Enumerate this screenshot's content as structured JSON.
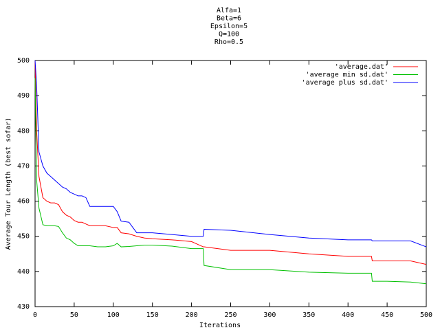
{
  "chart_data": {
    "type": "line",
    "title": [
      "Alfa=1",
      "Beta=6",
      "Epsilon=5",
      "Q=100",
      "Rho=0.5"
    ],
    "x_label": "Iterations",
    "y_label": "Average Tour Length (best sofar)",
    "x": [
      0,
      2,
      5,
      10,
      15,
      20,
      25,
      30,
      35,
      40,
      45,
      50,
      55,
      60,
      65,
      70,
      80,
      90,
      100,
      105,
      110,
      120,
      130,
      140,
      150,
      175,
      200,
      215,
      216,
      250,
      300,
      350,
      400,
      430,
      431,
      450,
      480,
      500
    ],
    "series": [
      {
        "name": "'average.dat'",
        "color": "#ff0000",
        "values": [
          500,
          480,
          467,
          461,
          460,
          459.5,
          459.5,
          459,
          457,
          456,
          455.5,
          454.5,
          454,
          454,
          453.5,
          453,
          453,
          453,
          452.5,
          452.5,
          451,
          450.7,
          450,
          449.5,
          449.3,
          449,
          448.5,
          447,
          447,
          446,
          446,
          445,
          444.3,
          444.3,
          443,
          443,
          443,
          442
        ]
      },
      {
        "name": "'average min sd.dat'",
        "color": "#00c000",
        "values": [
          495,
          466,
          458,
          453.3,
          453,
          453,
          453,
          452.8,
          451,
          449.5,
          449,
          448,
          447.3,
          447.3,
          447.3,
          447.3,
          447,
          447,
          447.3,
          448,
          447,
          447.1,
          447.3,
          447.5,
          447.5,
          447.2,
          446.5,
          446.5,
          441.7,
          440.5,
          440.5,
          439.8,
          439.5,
          439.5,
          437.2,
          437.2,
          437,
          436.5
        ]
      },
      {
        "name": "'average plus sd.dat'",
        "color": "#0000ff",
        "values": [
          500,
          493,
          474,
          470,
          468,
          467,
          466,
          465,
          464,
          463.5,
          462.5,
          462,
          461.5,
          461.5,
          461,
          458.5,
          458.5,
          458.5,
          458.5,
          457,
          454.3,
          454,
          451,
          451,
          451,
          450.5,
          450,
          450,
          452,
          451.7,
          450.5,
          449.5,
          449,
          449,
          448.7,
          448.7,
          448.7,
          447
        ]
      }
    ],
    "xlim": [
      0,
      500
    ],
    "ylim": [
      430,
      500
    ],
    "xticks": [
      0,
      50,
      100,
      150,
      200,
      250,
      300,
      350,
      400,
      450,
      500
    ],
    "yticks": [
      430,
      440,
      450,
      460,
      470,
      480,
      490,
      500
    ],
    "legend": "top-right",
    "grid": false
  }
}
